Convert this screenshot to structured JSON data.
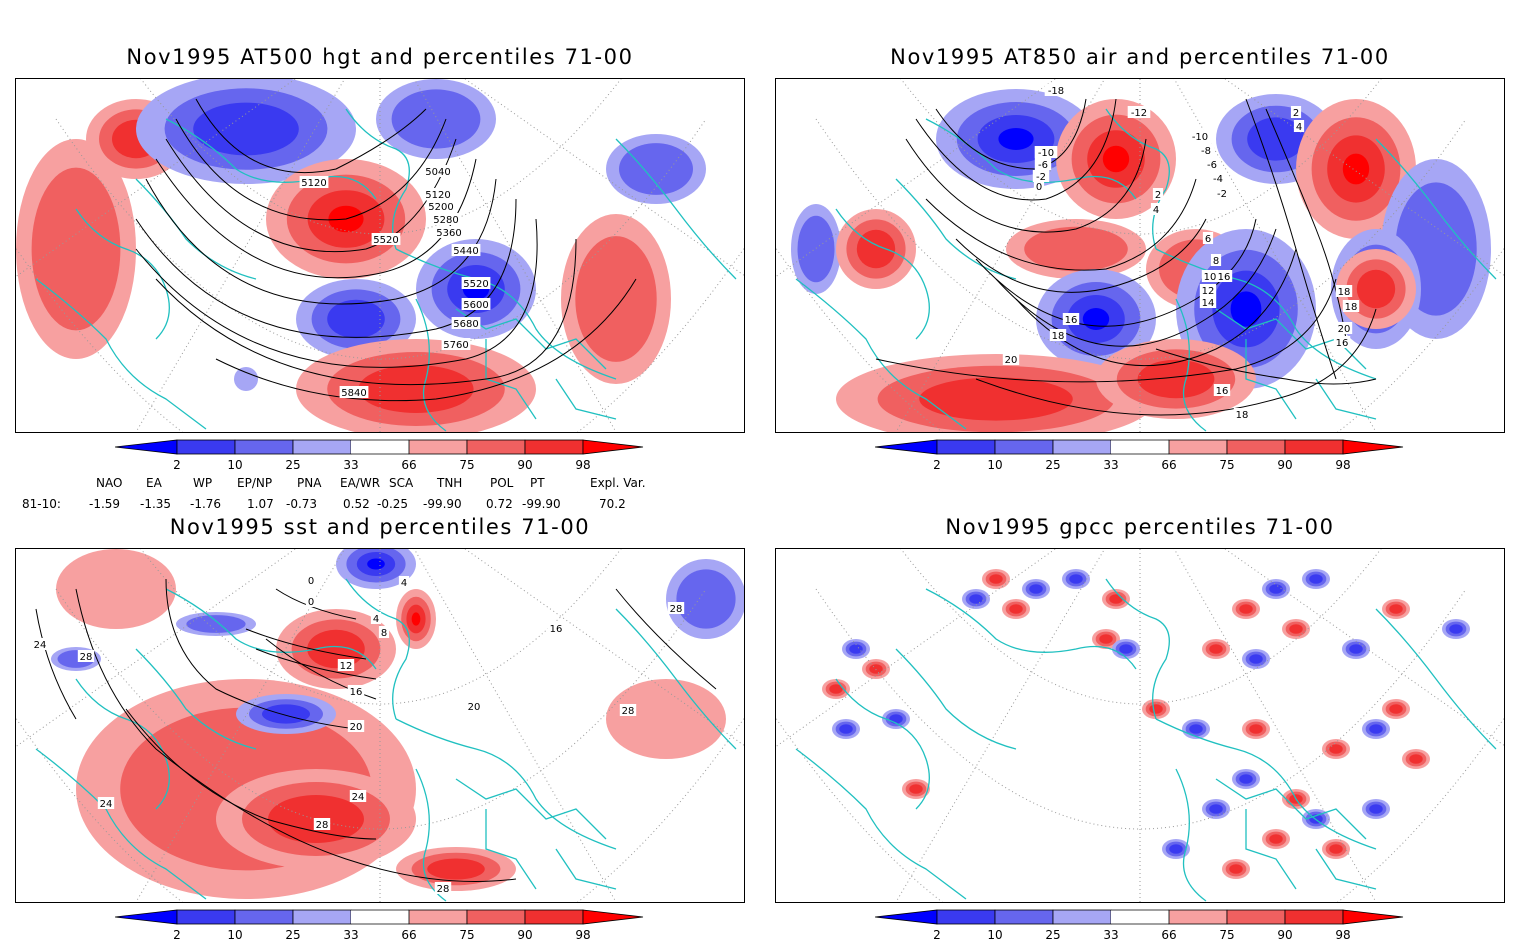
{
  "panels": [
    {
      "id": "hgt",
      "title": "Nov1995 AT500 hgt and percentiles 71-00",
      "contour_labels": [
        "5040",
        "5120",
        "5120",
        "5200",
        "5280",
        "5360",
        "5440",
        "5520",
        "5520",
        "5600",
        "5680",
        "5760",
        "5840"
      ]
    },
    {
      "id": "air",
      "title": "Nov1995 AT850 air and percentiles 71-00",
      "contour_labels": [
        "-18",
        "-10",
        "-6",
        "-2",
        "0",
        "2",
        "4",
        "6",
        "8",
        "10",
        "12",
        "14",
        "16",
        "18",
        "20",
        "-12",
        "-10",
        "-8",
        "-6",
        "-4",
        "-2",
        "16",
        "18",
        "18",
        "20",
        "16",
        "16",
        "18",
        "2",
        "4"
      ]
    },
    {
      "id": "sst",
      "title": "Nov1995 sst and percentiles 71-00",
      "contour_labels": [
        "0",
        "0",
        "4",
        "4",
        "8",
        "12",
        "16",
        "20",
        "20",
        "24",
        "24",
        "28",
        "28",
        "28",
        "28",
        "16",
        "28",
        "24"
      ]
    },
    {
      "id": "gpcc",
      "title": "Nov1995 gpcc percentiles 71-00",
      "contour_labels": []
    }
  ],
  "colorbar": {
    "ticks": [
      "2",
      "10",
      "25",
      "33",
      "66",
      "75",
      "90",
      "98"
    ],
    "colors": {
      "dark_blue": "#0000ff",
      "blue": "#3a3af0",
      "mid_blue": "#6666ee",
      "light_blue": "#a6a6f5",
      "light_red": "#f7a0a0",
      "mid_red": "#f06060",
      "red": "#f03030",
      "dark_red": "#ff0000",
      "coast": "#20c0c0"
    }
  },
  "indices": {
    "headers": [
      "NAO",
      "EA",
      "WP",
      "EP/NP",
      "PNA",
      "EA/WR",
      "SCA",
      "TNH",
      "POL",
      "PT",
      "Expl. Var."
    ],
    "row_label": "81-10:",
    "values": [
      "-1.59",
      "-1.35",
      "-1.76",
      "1.07",
      "-0.73",
      "0.52",
      "-0.25",
      "-99.90",
      "0.72",
      "-99.90",
      "70.2"
    ]
  }
}
